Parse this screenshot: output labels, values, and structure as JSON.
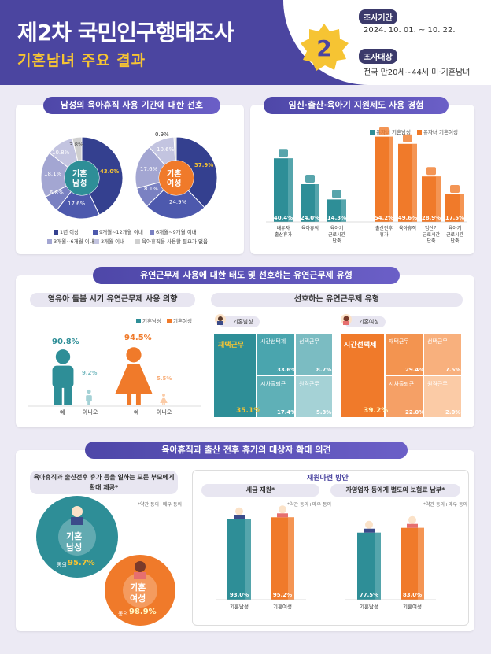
{
  "header": {
    "title": "제2차 국민인구행태조사",
    "subtitle": "기혼남녀 주요 결과",
    "badge": "2",
    "period_label": "조사기간",
    "period": "2024. 10. 01. ~ 10. 22.",
    "target_label": "조사대상",
    "target": "전국 만20세~44세 미·기혼남녀"
  },
  "s1": {
    "title": "남성의 육아휴직 사용 기간에 대한 선호",
    "male": {
      "label1": "기혼",
      "label2": "남성",
      "values": [
        43.0,
        17.6,
        6.8,
        18.1,
        10.8,
        3.8
      ],
      "texts": [
        "43.0%",
        "17.6%",
        "6.8%",
        "18.1%",
        "10.8%",
        "3.8%"
      ]
    },
    "female": {
      "label1": "기혼",
      "label2": "여성",
      "values": [
        37.9,
        24.9,
        8.1,
        17.6,
        10.6,
        0.9
      ],
      "texts": [
        "37.9%",
        "24.9%",
        "8.1%",
        "17.6%",
        "10.6%",
        "0.9%"
      ]
    },
    "legend": [
      "1년 이상",
      "9개월~12개월 이내",
      "6개월~9개월 이내",
      "3개월~6개월 이내",
      "3개월 이내",
      "육아휴직을 사용할 필요가 없음"
    ],
    "colors": [
      "#34408f",
      "#4d59ad",
      "#7a81c2",
      "#a3a6d2",
      "#c3c4e0",
      "#cfcfcf"
    ]
  },
  "s2": {
    "title": "임신·출산·육아기 지원제도 사용 경험",
    "legend_male": "유자녀 기혼남성",
    "legend_female": "유자녀 기혼여성",
    "male_cats": [
      "배우자 출산휴가",
      "육아휴직",
      "육아기 근로시간 단축"
    ],
    "male_vals": [
      "40.4%",
      "24.0%",
      "14.3%"
    ],
    "female_cats": [
      "출산전후 휴가",
      "육아휴직",
      "임신기 근로시간 단축",
      "육아기 근로시간 단축"
    ],
    "female_vals": [
      "54.2%",
      "49.6%",
      "28.9%",
      "17.5%"
    ]
  },
  "s3": {
    "title": "유연근무제 사용에 대한 태도 및 선호하는 유연근무제 유형",
    "left_title": "영유아 돌봄 시기 유연근무제 사용 의향",
    "right_title": "선호하는 유연근무제 유형",
    "legend_male": "기혼남성",
    "legend_female": "기혼여성",
    "yes": "예",
    "no": "아니오",
    "male_yes": "90.8%",
    "male_no": "9.2%",
    "female_yes": "94.5%",
    "female_no": "5.5%",
    "tag_male": "기혼남성",
    "tag_female": "기혼여성",
    "m_cells": [
      {
        "label": "재택근무",
        "value": "35.1%"
      },
      {
        "label": "시간선택제",
        "value": "33.6%"
      },
      {
        "label": "선택근무",
        "value": "8.7%"
      },
      {
        "label": "시차출퇴근",
        "value": "17.4%"
      },
      {
        "label": "원격근무",
        "value": "5.3%"
      }
    ],
    "f_cells": [
      {
        "label": "시간선택제",
        "value": "39.2%"
      },
      {
        "label": "재택근무",
        "value": "29.4%"
      },
      {
        "label": "선택근무",
        "value": "7.5%"
      },
      {
        "label": "시차출퇴근",
        "value": "22.0%"
      },
      {
        "label": "원격근무",
        "value": "2.0%"
      }
    ]
  },
  "s4": {
    "title": "육아휴직과 출산 전후 휴가의 대상자 확대 의견",
    "left_title": "육아휴직과 출산전후 휴가 등을 일하는 모든 부모에게 확대 제공*",
    "agree_note": "*약간 동의+매우 동의",
    "male": {
      "l1": "기혼",
      "l2": "남성",
      "agree": "동의",
      "value": "95.7%"
    },
    "female": {
      "l1": "기혼",
      "l2": "여성",
      "agree": "동의",
      "value": "98.9%"
    },
    "fund": "재원마련 방안",
    "tax": "세금 재원*",
    "ins": "자영업자 등에게 별도의 보험료 납부*",
    "note": "*약간 동의+매우 동의",
    "tax_m": "93.0%",
    "tax_f": "95.2%",
    "ins_m": "77.5%",
    "ins_f": "83.0%",
    "cat_m": "기혼남성",
    "cat_f": "기혼여성"
  },
  "chart_data": [
    {
      "type": "pie",
      "title": "남성의 육아휴직 사용 기간에 대한 선호",
      "categories": [
        "1년 이상",
        "9개월~12개월 이내",
        "6개월~9개월 이내",
        "3개월~6개월 이내",
        "3개월 이내",
        "육아휴직을 사용할 필요가 없음"
      ],
      "series": [
        {
          "name": "기혼남성",
          "values": [
            43.0,
            17.6,
            6.8,
            18.1,
            10.8,
            3.8
          ]
        },
        {
          "name": "기혼여성",
          "values": [
            37.9,
            24.9,
            8.1,
            17.6,
            10.6,
            0.9
          ]
        }
      ]
    },
    {
      "type": "bar",
      "title": "임신·출산·육아기 지원제도 사용 경험",
      "series": [
        {
          "name": "유자녀 기혼남성",
          "categories": [
            "배우자 출산휴가",
            "육아휴직",
            "육아기 근로시간 단축"
          ],
          "values": [
            40.4,
            24.0,
            14.3
          ]
        },
        {
          "name": "유자녀 기혼여성",
          "categories": [
            "출산전후 휴가",
            "육아휴직",
            "임신기 근로시간 단축",
            "육아기 근로시간 단축"
          ],
          "values": [
            54.2,
            49.6,
            28.9,
            17.5
          ]
        }
      ]
    },
    {
      "type": "bar",
      "title": "영유아 돌봄 시기 유연근무제 사용 의향",
      "categories": [
        "예",
        "아니오"
      ],
      "series": [
        {
          "name": "기혼남성",
          "values": [
            90.8,
            9.2
          ]
        },
        {
          "name": "기혼여성",
          "values": [
            94.5,
            5.5
          ]
        }
      ]
    },
    {
      "type": "bar",
      "title": "선호하는 유연근무제 유형",
      "categories": [
        "재택근무",
        "시간선택제",
        "선택근무",
        "시차출퇴근",
        "원격근무"
      ],
      "series": [
        {
          "name": "기혼남성",
          "values": [
            35.1,
            33.6,
            8.7,
            17.4,
            5.3
          ]
        },
        {
          "name": "기혼여성",
          "values": [
            29.4,
            39.2,
            7.5,
            22.0,
            2.0
          ]
        }
      ]
    },
    {
      "type": "bar",
      "title": "세금 재원",
      "categories": [
        "기혼남성",
        "기혼여성"
      ],
      "values": [
        93.0,
        95.2
      ]
    },
    {
      "type": "bar",
      "title": "자영업자 등에게 별도의 보험료 납부",
      "categories": [
        "기혼남성",
        "기혼여성"
      ],
      "values": [
        77.5,
        83.0
      ]
    }
  ]
}
